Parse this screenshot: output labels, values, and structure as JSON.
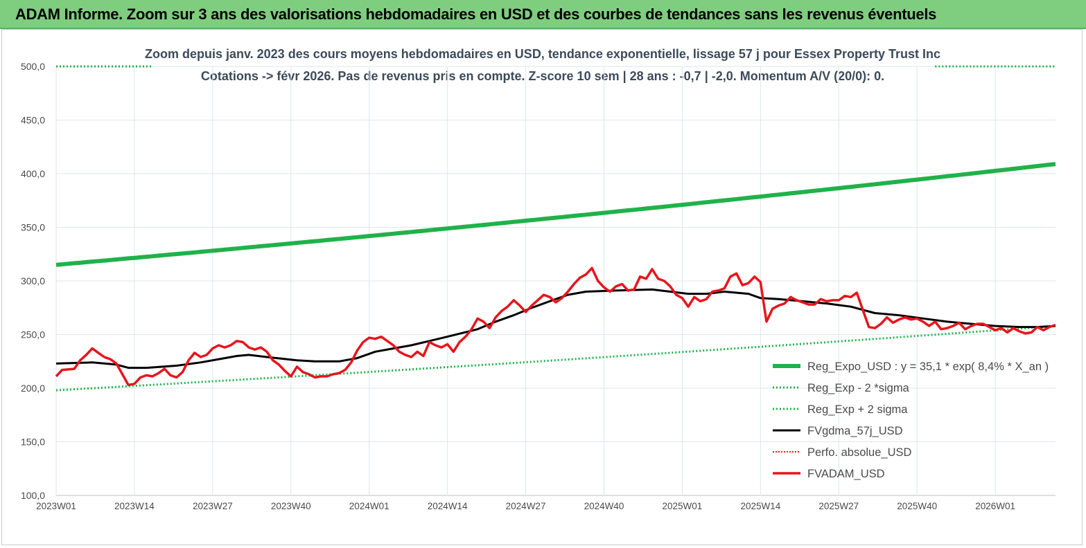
{
  "header": {
    "title": "ADAM Informe. Zoom sur 3 ans des valorisations hebdomadaires en USD et des courbes de tendances sans les revenus éventuels"
  },
  "colors": {
    "banner": "#7fcd7f",
    "reg_expo": "#1fb24a",
    "sigma": "#1fb24a",
    "fvgdma": "#000000",
    "perfo": "#e8141c",
    "fvadam": "#e8141c",
    "grid": "#dfe6ea"
  },
  "chart_data": {
    "type": "line",
    "subtitle_line1": "Zoom depuis janv. 2023 des cours moyens hebdomadaires en USD, tendance exponentielle, lissage 57 j pour Essex Property Trust Inc",
    "subtitle_line2": "Cotations -> févr 2026.  Pas de revenus pris en compte. Z-score 10 sem  |  28 ans : -0,7  |  -2,0. Momentum A/V (20/0): 0.",
    "ylim": [
      100,
      500
    ],
    "yticks": [
      "100,0",
      "150,0",
      "200,0",
      "250,0",
      "300,0",
      "350,0",
      "400,0",
      "450,0",
      "500,0"
    ],
    "ytick_values": [
      100,
      150,
      200,
      250,
      300,
      350,
      400,
      450,
      500
    ],
    "xticks": [
      "2023W01",
      "2023W14",
      "2023W27",
      "2023W40",
      "2024W01",
      "2024W14",
      "2024W27",
      "2024W40",
      "2025W01",
      "2025W14",
      "2025W27",
      "2025W40",
      "2026W01"
    ],
    "xtick_weeks": [
      0,
      13,
      26,
      39,
      52,
      65,
      78,
      91,
      104,
      117,
      130,
      143,
      156
    ],
    "x_weeks_total": 166,
    "legend": [
      {
        "key": "reg_expo",
        "label": "Reg_Expo_USD : y = 35,1 * exp( 8,4% *  X_an )",
        "style": "thick"
      },
      {
        "key": "sigma_minus",
        "label": "Reg_Exp - 2 *sigma",
        "style": "dotted"
      },
      {
        "key": "sigma_plus",
        "label": "Reg_Exp + 2 sigma",
        "style": "dotted"
      },
      {
        "key": "fvgdma",
        "label": "FVgdma_57j_USD",
        "style": "solid"
      },
      {
        "key": "perfo",
        "label": "Perfo. absolue_USD",
        "style": "dotted-red"
      },
      {
        "key": "fvadam",
        "label": "FVADAM_USD",
        "style": "solid-red"
      }
    ],
    "series": {
      "reg_expo": {
        "start": 315,
        "end": 409
      },
      "sigma_minus": {
        "start": 198,
        "end": 258
      },
      "sigma_plus": {
        "start": 500,
        "end": 500,
        "visible_segments": [
          [
            0,
            16
          ],
          [
            146,
            166
          ]
        ]
      },
      "fvgdma": {
        "points": [
          [
            0,
            223
          ],
          [
            6,
            224
          ],
          [
            10,
            222
          ],
          [
            12,
            219
          ],
          [
            15,
            219
          ],
          [
            20,
            221
          ],
          [
            24,
            224
          ],
          [
            28,
            228
          ],
          [
            30,
            230
          ],
          [
            32,
            231
          ],
          [
            35,
            229
          ],
          [
            40,
            226
          ],
          [
            43,
            225
          ],
          [
            47,
            225
          ],
          [
            50,
            228
          ],
          [
            53,
            234
          ],
          [
            56,
            237
          ],
          [
            59,
            240
          ],
          [
            62,
            244
          ],
          [
            65,
            248
          ],
          [
            70,
            255
          ],
          [
            73,
            262
          ],
          [
            76,
            268
          ],
          [
            79,
            275
          ],
          [
            82,
            281
          ],
          [
            85,
            287
          ],
          [
            88,
            290
          ],
          [
            93,
            291
          ],
          [
            99,
            292
          ],
          [
            102,
            290
          ],
          [
            105,
            288
          ],
          [
            108,
            288
          ],
          [
            111,
            290
          ],
          [
            115,
            288
          ],
          [
            117,
            284
          ],
          [
            120,
            283
          ],
          [
            124,
            281
          ],
          [
            128,
            279
          ],
          [
            132,
            276
          ],
          [
            136,
            270
          ],
          [
            140,
            268
          ],
          [
            144,
            265
          ],
          [
            148,
            262
          ],
          [
            152,
            260
          ],
          [
            156,
            258
          ],
          [
            160,
            257
          ],
          [
            163,
            257
          ],
          [
            166,
            258
          ]
        ]
      },
      "fvadam": {
        "points": [
          [
            0,
            211
          ],
          [
            1,
            217
          ],
          [
            3,
            218
          ],
          [
            4,
            226
          ],
          [
            5,
            231
          ],
          [
            6,
            237
          ],
          [
            7,
            233
          ],
          [
            8,
            229
          ],
          [
            9,
            227
          ],
          [
            10,
            223
          ],
          [
            11,
            213
          ],
          [
            12,
            203
          ],
          [
            13,
            204
          ],
          [
            14,
            210
          ],
          [
            15,
            212
          ],
          [
            16,
            211
          ],
          [
            17,
            214
          ],
          [
            18,
            218
          ],
          [
            19,
            212
          ],
          [
            20,
            210
          ],
          [
            21,
            215
          ],
          [
            22,
            226
          ],
          [
            23,
            233
          ],
          [
            24,
            229
          ],
          [
            25,
            231
          ],
          [
            26,
            237
          ],
          [
            27,
            240
          ],
          [
            28,
            238
          ],
          [
            29,
            240
          ],
          [
            30,
            244
          ],
          [
            31,
            243
          ],
          [
            32,
            238
          ],
          [
            33,
            236
          ],
          [
            34,
            238
          ],
          [
            35,
            234
          ],
          [
            36,
            226
          ],
          [
            37,
            222
          ],
          [
            38,
            216
          ],
          [
            39,
            211
          ],
          [
            40,
            220
          ],
          [
            41,
            215
          ],
          [
            42,
            213
          ],
          [
            43,
            210
          ],
          [
            44,
            211
          ],
          [
            45,
            211
          ],
          [
            46,
            213
          ],
          [
            47,
            214
          ],
          [
            48,
            217
          ],
          [
            49,
            224
          ],
          [
            50,
            235
          ],
          [
            51,
            243
          ],
          [
            52,
            247
          ],
          [
            53,
            246
          ],
          [
            54,
            248
          ],
          [
            55,
            244
          ],
          [
            56,
            240
          ],
          [
            57,
            234
          ],
          [
            58,
            231
          ],
          [
            59,
            229
          ],
          [
            60,
            234
          ],
          [
            61,
            230
          ],
          [
            62,
            243
          ],
          [
            63,
            240
          ],
          [
            64,
            238
          ],
          [
            65,
            241
          ],
          [
            66,
            234
          ],
          [
            67,
            243
          ],
          [
            68,
            248
          ],
          [
            69,
            255
          ],
          [
            70,
            265
          ],
          [
            71,
            262
          ],
          [
            72,
            256
          ],
          [
            73,
            266
          ],
          [
            74,
            272
          ],
          [
            75,
            276
          ],
          [
            76,
            282
          ],
          [
            77,
            277
          ],
          [
            78,
            271
          ],
          [
            79,
            277
          ],
          [
            80,
            282
          ],
          [
            81,
            287
          ],
          [
            82,
            285
          ],
          [
            83,
            280
          ],
          [
            84,
            284
          ],
          [
            85,
            290
          ],
          [
            86,
            297
          ],
          [
            87,
            303
          ],
          [
            88,
            306
          ],
          [
            89,
            312
          ],
          [
            90,
            300
          ],
          [
            91,
            294
          ],
          [
            92,
            290
          ],
          [
            93,
            295
          ],
          [
            94,
            297
          ],
          [
            95,
            291
          ],
          [
            96,
            292
          ],
          [
            97,
            304
          ],
          [
            98,
            302
          ],
          [
            99,
            311
          ],
          [
            100,
            302
          ],
          [
            101,
            300
          ],
          [
            102,
            295
          ],
          [
            103,
            287
          ],
          [
            104,
            284
          ],
          [
            105,
            276
          ],
          [
            106,
            285
          ],
          [
            107,
            281
          ],
          [
            108,
            283
          ],
          [
            109,
            290
          ],
          [
            110,
            291
          ],
          [
            111,
            293
          ],
          [
            112,
            304
          ],
          [
            113,
            307
          ],
          [
            114,
            296
          ],
          [
            115,
            298
          ],
          [
            116,
            304
          ],
          [
            117,
            299
          ],
          [
            118,
            262
          ],
          [
            119,
            274
          ],
          [
            120,
            277
          ],
          [
            121,
            279
          ],
          [
            122,
            285
          ],
          [
            123,
            282
          ],
          [
            124,
            280
          ],
          [
            125,
            278
          ],
          [
            126,
            278
          ],
          [
            127,
            283
          ],
          [
            128,
            281
          ],
          [
            129,
            282
          ],
          [
            130,
            282
          ],
          [
            131,
            286
          ],
          [
            132,
            285
          ],
          [
            133,
            289
          ],
          [
            134,
            273
          ],
          [
            135,
            257
          ],
          [
            136,
            256
          ],
          [
            137,
            260
          ],
          [
            138,
            266
          ],
          [
            139,
            261
          ],
          [
            140,
            264
          ],
          [
            141,
            266
          ],
          [
            142,
            264
          ],
          [
            143,
            265
          ],
          [
            144,
            262
          ],
          [
            145,
            258
          ],
          [
            146,
            262
          ],
          [
            147,
            255
          ],
          [
            148,
            256
          ],
          [
            149,
            258
          ],
          [
            150,
            261
          ],
          [
            151,
            255
          ],
          [
            152,
            258
          ],
          [
            153,
            260
          ],
          [
            154,
            260
          ],
          [
            155,
            257
          ],
          [
            156,
            254
          ],
          [
            157,
            256
          ],
          [
            158,
            252
          ],
          [
            159,
            256
          ],
          [
            160,
            253
          ],
          [
            161,
            251
          ],
          [
            162,
            252
          ],
          [
            163,
            257
          ],
          [
            164,
            254
          ],
          [
            165,
            257
          ],
          [
            166,
            259
          ]
        ]
      }
    }
  }
}
